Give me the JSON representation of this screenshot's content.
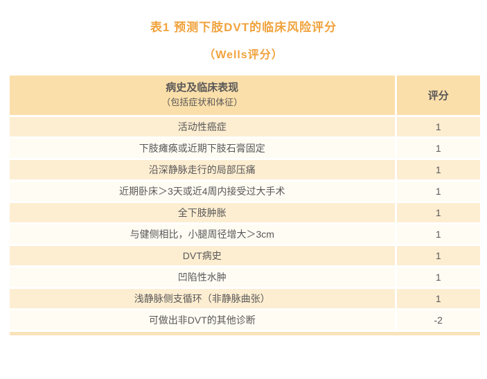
{
  "page": {
    "title": "表1 预测下肢DVT的临床风险评分",
    "subtitle": "（Wells评分）"
  },
  "table": {
    "header": {
      "item_title": "病史及临床表现",
      "item_subtitle": "（包括症状和体征）",
      "score_title": "评分"
    },
    "rows": [
      {
        "item": "活动性癌症",
        "score": "1"
      },
      {
        "item": "下肢瘫痪或近期下肢石膏固定",
        "score": "1"
      },
      {
        "item": "沿深静脉走行的局部压痛",
        "score": "1"
      },
      {
        "item": "近期卧床＞3天或近4周内接受过大手术",
        "score": "1"
      },
      {
        "item": "全下肢肿胀",
        "score": "1"
      },
      {
        "item": "与健侧相比，小腿周径增大＞3cm",
        "score": "1"
      },
      {
        "item": "DVT病史",
        "score": "1"
      },
      {
        "item": "凹陷性水肿",
        "score": "1"
      },
      {
        "item": "浅静脉侧支循环（非静脉曲张）",
        "score": "1"
      },
      {
        "item": "可做出非DVT的其他诊断",
        "score": "-2"
      }
    ]
  },
  "colors": {
    "title_text": "#F0A23C",
    "header_bg": "#FBDFAA",
    "row_odd_bg": "#FDEED2",
    "row_even_bg": "#FFFCF4",
    "body_text": "#595757",
    "divider": "#FFFFFF",
    "bottom_strip": "#FAE3BA"
  }
}
